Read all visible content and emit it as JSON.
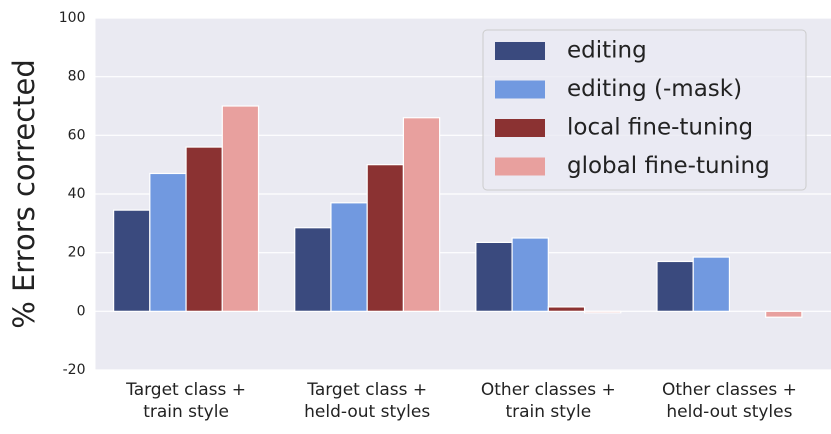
{
  "chart_data": {
    "type": "bar",
    "ylabel": "% Errors corrected",
    "categories": [
      [
        "Target class +",
        "train style"
      ],
      [
        "Target class +",
        "held-out styles"
      ],
      [
        "Other classes +",
        "train style"
      ],
      [
        "Other classes +",
        "held-out styles"
      ]
    ],
    "series": [
      {
        "name": "editing",
        "color": "#3a4a7e",
        "values": [
          34.5,
          28.5,
          23.5,
          17
        ]
      },
      {
        "name": "editing (-mask)",
        "color": "#7199e0",
        "values": [
          47,
          37,
          25,
          18.5
        ]
      },
      {
        "name": "local fine-tuning",
        "color": "#8b3232",
        "values": [
          56,
          50,
          1.5,
          0
        ]
      },
      {
        "name": "global fine-tuning",
        "color": "#e8a09e",
        "values": [
          70,
          66,
          -0.5,
          -2
        ]
      }
    ],
    "ylim": [
      -20,
      100
    ],
    "yticks": [
      -20,
      0,
      20,
      40,
      60,
      80,
      100
    ],
    "grid": true,
    "legend": "upper right"
  }
}
